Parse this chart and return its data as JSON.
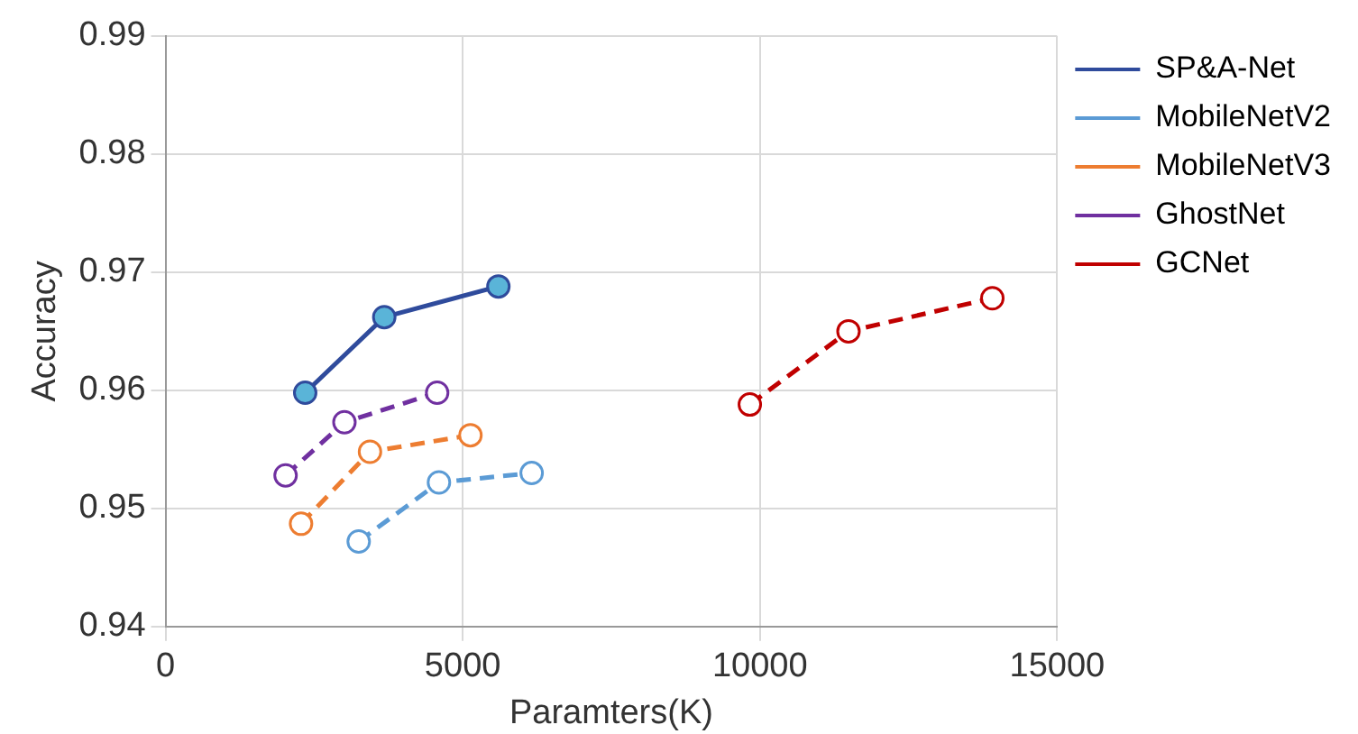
{
  "chart_data": {
    "type": "line",
    "xlabel": "Paramters(K)",
    "ylabel": "Accuracy",
    "xlim": [
      0,
      15000
    ],
    "xticks": [
      0,
      5000,
      10000,
      15000
    ],
    "ylim": [
      0.94,
      0.99
    ],
    "yticks": [
      0.94,
      0.95,
      0.96,
      0.97,
      0.98,
      0.99
    ],
    "grid": true,
    "legend": "right",
    "marker": "circle",
    "series": [
      {
        "name": "SP&A-Net",
        "color": "#2f4b9c",
        "x": [
          2350,
          3680,
          5600
        ],
        "values": [
          0.9598,
          0.9662,
          0.9688
        ],
        "line_style": "solid"
      },
      {
        "name": "MobileNetV2",
        "color": "#5b9bd5",
        "x": [
          3250,
          4600,
          6160
        ],
        "values": [
          0.9472,
          0.9522,
          0.953
        ],
        "line_style": "dashed"
      },
      {
        "name": "MobileNetV3",
        "color": "#ed7d31",
        "x": [
          2280,
          3440,
          5130
        ],
        "values": [
          0.9487,
          0.9548,
          0.9562
        ],
        "line_style": "dashed"
      },
      {
        "name": "GhostNet",
        "color": "#7030a0",
        "x": [
          2020,
          3010,
          4570
        ],
        "values": [
          0.9528,
          0.9573,
          0.9598
        ],
        "line_style": "dashed"
      },
      {
        "name": "GCNet",
        "color": "#c00000",
        "x": [
          9830,
          11490,
          13910
        ],
        "values": [
          0.9588,
          0.965,
          0.9678
        ],
        "line_style": "dashed"
      }
    ]
  }
}
